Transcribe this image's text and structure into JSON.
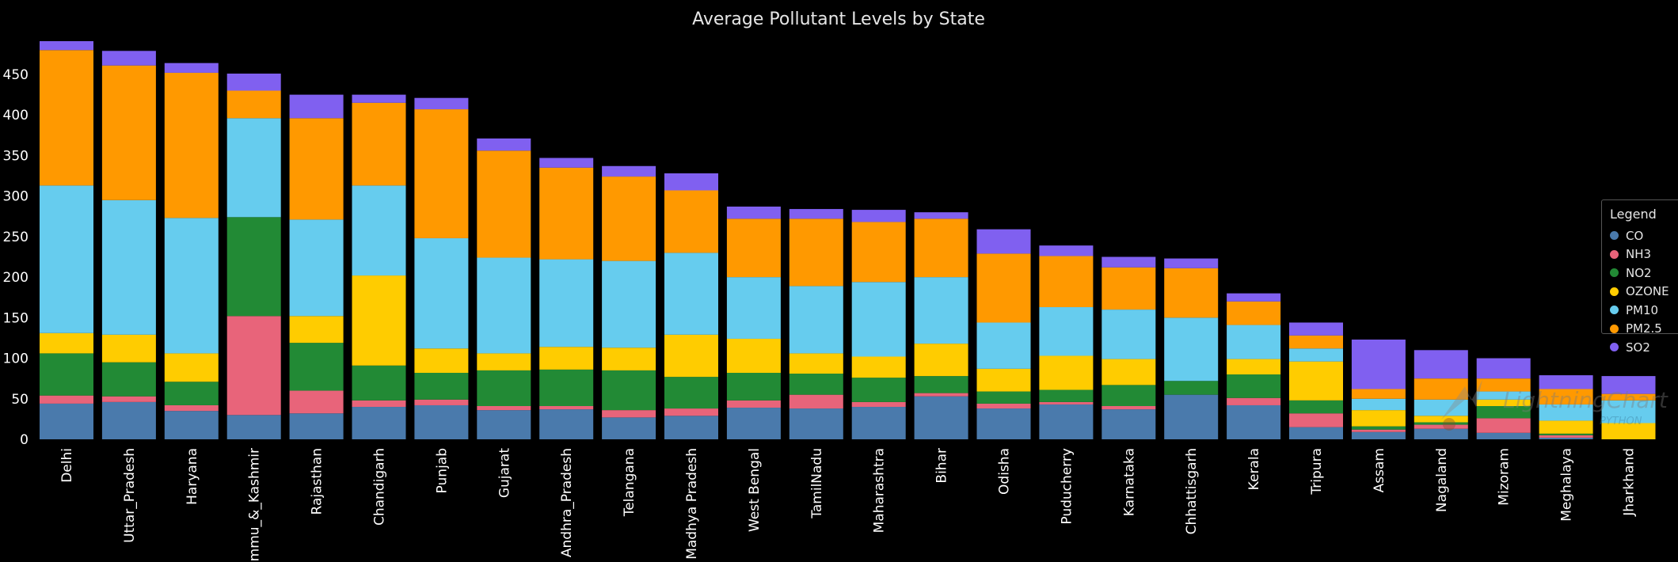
{
  "chart_data": {
    "type": "bar",
    "stacked": true,
    "title": "Average Pollutant Levels by State",
    "xlabel": "",
    "ylabel": "",
    "ylim": [
      0,
      500
    ],
    "yticks": [
      0,
      50,
      100,
      150,
      200,
      250,
      300,
      350,
      400,
      450
    ],
    "grid": false,
    "legend_title": "Legend",
    "legend_position": "right",
    "categories": [
      "Delhi",
      "Uttar_Pradesh",
      "Haryana",
      "Jammu_&_Kashmir",
      "Rajasthan",
      "Chandigarh",
      "Punjab",
      "Gujarat",
      "Andhra_Pradesh",
      "Telangana",
      "Madhya Pradesh",
      "West Bengal",
      "TamilNadu",
      "Maharashtra",
      "Bihar",
      "Odisha",
      "Puducherry",
      "Karnataka",
      "Chhattisgarh",
      "Kerala",
      "Tripura",
      "Assam",
      "Nagaland",
      "Mizoram",
      "Meghalaya",
      "Jharkhand"
    ],
    "series": [
      {
        "name": "CO",
        "color": "#4a7aac",
        "values": [
          44,
          46,
          35,
          30,
          32,
          40,
          42,
          36,
          37,
          27,
          29,
          39,
          38,
          40,
          53,
          38,
          43,
          37,
          55,
          42,
          15,
          9,
          13,
          8,
          2,
          0
        ]
      },
      {
        "name": "NH3",
        "color": "#e8647a",
        "values": [
          10,
          7,
          7,
          122,
          28,
          8,
          7,
          5,
          4,
          9,
          9,
          9,
          17,
          6,
          4,
          6,
          3,
          4,
          0,
          9,
          17,
          3,
          5,
          18,
          3,
          0
        ]
      },
      {
        "name": "NO2",
        "color": "#228a35",
        "values": [
          52,
          42,
          29,
          122,
          59,
          43,
          33,
          44,
          45,
          49,
          39,
          34,
          26,
          30,
          21,
          15,
          15,
          26,
          17,
          29,
          16,
          4,
          3,
          15,
          2,
          0
        ]
      },
      {
        "name": "OZONE",
        "color": "#ffcc00",
        "values": [
          25,
          34,
          35,
          0,
          33,
          111,
          30,
          21,
          28,
          28,
          52,
          42,
          25,
          26,
          40,
          28,
          42,
          32,
          0,
          19,
          48,
          20,
          8,
          8,
          16,
          20
        ]
      },
      {
        "name": "PM10",
        "color": "#66ccee",
        "values": [
          182,
          166,
          167,
          122,
          119,
          111,
          136,
          118,
          108,
          107,
          101,
          76,
          83,
          92,
          82,
          57,
          60,
          61,
          78,
          42,
          16,
          14,
          20,
          10,
          20,
          28
        ]
      },
      {
        "name": "PM2.5",
        "color": "#ff9900",
        "values": [
          167,
          166,
          179,
          34,
          125,
          102,
          159,
          132,
          113,
          104,
          77,
          72,
          83,
          74,
          72,
          85,
          63,
          52,
          61,
          29,
          16,
          12,
          26,
          16,
          19,
          8
        ]
      },
      {
        "name": "SO2",
        "color": "#8060f0",
        "values": [
          11,
          18,
          12,
          21,
          29,
          10,
          14,
          15,
          12,
          13,
          21,
          15,
          12,
          15,
          8,
          30,
          13,
          13,
          12,
          10,
          16,
          61,
          35,
          25,
          17,
          22
        ]
      }
    ]
  },
  "watermark": {
    "text": "LightningChart",
    "subtext": "PYTHON"
  }
}
